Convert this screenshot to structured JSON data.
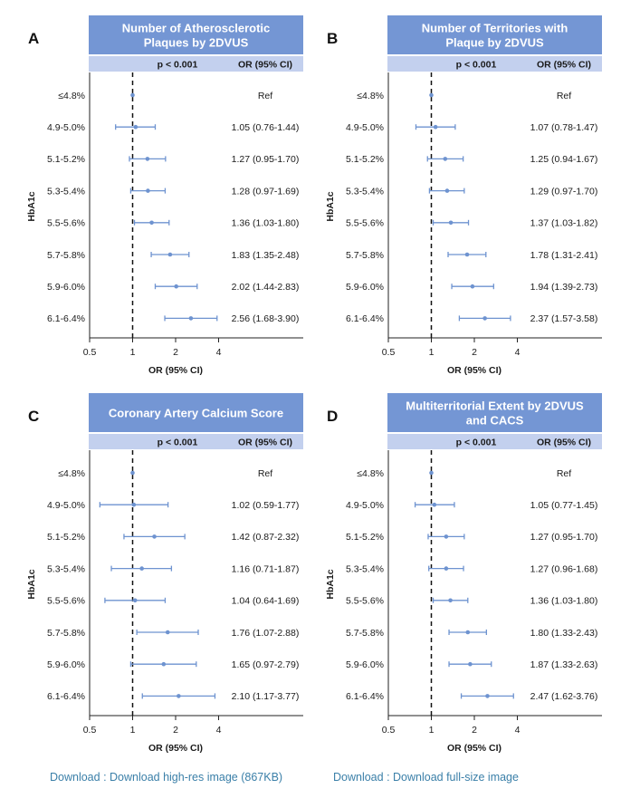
{
  "chart_data": [
    {
      "type": "forest",
      "panel_letter": "A",
      "title": [
        "Number of Atherosclerotic",
        "Plaques by 2DVUS"
      ],
      "p_value": "p < 0.001",
      "or_header": "OR (95% CI)",
      "ylabel": "HbA1c",
      "xlabel": "OR (95% CI)",
      "xscale": "log2",
      "xticks": [
        "0.5",
        "1",
        "2",
        "4"
      ],
      "xlim": [
        0.5,
        5.2
      ],
      "reference_line": 1,
      "rows": [
        {
          "category": "≤4.8%",
          "text": "Ref",
          "or": 1.0,
          "lo": 1.0,
          "hi": 1.0
        },
        {
          "category": "4.9-5.0%",
          "text": "1.05 (0.76-1.44)",
          "or": 1.05,
          "lo": 0.76,
          "hi": 1.44
        },
        {
          "category": "5.1-5.2%",
          "text": "1.27 (0.95-1.70)",
          "or": 1.27,
          "lo": 0.95,
          "hi": 1.7
        },
        {
          "category": "5.3-5.4%",
          "text": "1.28 (0.97-1.69)",
          "or": 1.28,
          "lo": 0.97,
          "hi": 1.69
        },
        {
          "category": "5.5-5.6%",
          "text": "1.36 (1.03-1.80)",
          "or": 1.36,
          "lo": 1.03,
          "hi": 1.8
        },
        {
          "category": "5.7-5.8%",
          "text": "1.83 (1.35-2.48)",
          "or": 1.83,
          "lo": 1.35,
          "hi": 2.48
        },
        {
          "category": "5.9-6.0%",
          "text": "2.02 (1.44-2.83)",
          "or": 2.02,
          "lo": 1.44,
          "hi": 2.83
        },
        {
          "category": "6.1-6.4%",
          "text": "2.56 (1.68-3.90)",
          "or": 2.56,
          "lo": 1.68,
          "hi": 3.9
        }
      ]
    },
    {
      "type": "forest",
      "panel_letter": "B",
      "title": [
        "Number of Territories with",
        "Plaque by 2DVUS"
      ],
      "p_value": "p < 0.001",
      "or_header": "OR (95% CI)",
      "ylabel": "HbA1c",
      "xlabel": "OR (95% CI)",
      "xscale": "log2",
      "xticks": [
        "0.5",
        "1",
        "2",
        "4"
      ],
      "xlim": [
        0.5,
        5.2
      ],
      "reference_line": 1,
      "rows": [
        {
          "category": "≤4.8%",
          "text": "Ref",
          "or": 1.0,
          "lo": 1.0,
          "hi": 1.0
        },
        {
          "category": "4.9-5.0%",
          "text": "1.07 (0.78-1.47)",
          "or": 1.07,
          "lo": 0.78,
          "hi": 1.47
        },
        {
          "category": "5.1-5.2%",
          "text": "1.25 (0.94-1.67)",
          "or": 1.25,
          "lo": 0.94,
          "hi": 1.67
        },
        {
          "category": "5.3-5.4%",
          "text": "1.29 (0.97-1.70)",
          "or": 1.29,
          "lo": 0.97,
          "hi": 1.7
        },
        {
          "category": "5.5-5.6%",
          "text": "1.37 (1.03-1.82)",
          "or": 1.37,
          "lo": 1.03,
          "hi": 1.82
        },
        {
          "category": "5.7-5.8%",
          "text": "1.78 (1.31-2.41)",
          "or": 1.78,
          "lo": 1.31,
          "hi": 2.41
        },
        {
          "category": "5.9-6.0%",
          "text": "1.94 (1.39-2.73)",
          "or": 1.94,
          "lo": 1.39,
          "hi": 2.73
        },
        {
          "category": "6.1-6.4%",
          "text": "2.37 (1.57-3.58)",
          "or": 2.37,
          "lo": 1.57,
          "hi": 3.58
        }
      ]
    },
    {
      "type": "forest",
      "panel_letter": "C",
      "title": [
        "Coronary Artery Calcium Score"
      ],
      "p_value": "p < 0.001",
      "or_header": "OR (95% CI)",
      "ylabel": "HbA1c",
      "xlabel": "OR (95% CI)",
      "xscale": "log2",
      "xticks": [
        "0.5",
        "1",
        "2",
        "4"
      ],
      "xlim": [
        0.5,
        5.2
      ],
      "reference_line": 1,
      "rows": [
        {
          "category": "≤4.8%",
          "text": "Ref",
          "or": 1.0,
          "lo": 1.0,
          "hi": 1.0
        },
        {
          "category": "4.9-5.0%",
          "text": "1.02 (0.59-1.77)",
          "or": 1.02,
          "lo": 0.59,
          "hi": 1.77
        },
        {
          "category": "5.1-5.2%",
          "text": "1.42 (0.87-2.32)",
          "or": 1.42,
          "lo": 0.87,
          "hi": 2.32
        },
        {
          "category": "5.3-5.4%",
          "text": "1.16 (0.71-1.87)",
          "or": 1.16,
          "lo": 0.71,
          "hi": 1.87
        },
        {
          "category": "5.5-5.6%",
          "text": "1.04 (0.64-1.69)",
          "or": 1.04,
          "lo": 0.64,
          "hi": 1.69
        },
        {
          "category": "5.7-5.8%",
          "text": "1.76 (1.07-2.88)",
          "or": 1.76,
          "lo": 1.07,
          "hi": 2.88
        },
        {
          "category": "5.9-6.0%",
          "text": "1.65 (0.97-2.79)",
          "or": 1.65,
          "lo": 0.97,
          "hi": 2.79
        },
        {
          "category": "6.1-6.4%",
          "text": "2.10 (1.17-3.77)",
          "or": 2.1,
          "lo": 1.17,
          "hi": 3.77
        }
      ]
    },
    {
      "type": "forest",
      "panel_letter": "D",
      "title": [
        "Multiterritorial Extent by 2DVUS",
        "and CACS"
      ],
      "p_value": "p < 0.001",
      "or_header": "OR (95% CI)",
      "ylabel": "HbA1c",
      "xlabel": "OR (95% CI)",
      "xscale": "log2",
      "xticks": [
        "0.5",
        "1",
        "2",
        "4"
      ],
      "xlim": [
        0.5,
        5.2
      ],
      "reference_line": 1,
      "rows": [
        {
          "category": "≤4.8%",
          "text": "Ref",
          "or": 1.0,
          "lo": 1.0,
          "hi": 1.0
        },
        {
          "category": "4.9-5.0%",
          "text": "1.05 (0.77-1.45)",
          "or": 1.05,
          "lo": 0.77,
          "hi": 1.45
        },
        {
          "category": "5.1-5.2%",
          "text": "1.27 (0.95-1.70)",
          "or": 1.27,
          "lo": 0.95,
          "hi": 1.7
        },
        {
          "category": "5.3-5.4%",
          "text": "1.27 (0.96-1.68)",
          "or": 1.27,
          "lo": 0.96,
          "hi": 1.68
        },
        {
          "category": "5.5-5.6%",
          "text": "1.36 (1.03-1.80)",
          "or": 1.36,
          "lo": 1.03,
          "hi": 1.8
        },
        {
          "category": "5.7-5.8%",
          "text": "1.80 (1.33-2.43)",
          "or": 1.8,
          "lo": 1.33,
          "hi": 2.43
        },
        {
          "category": "5.9-6.0%",
          "text": "1.87 (1.33-2.63)",
          "or": 1.87,
          "lo": 1.33,
          "hi": 2.63
        },
        {
          "category": "6.1-6.4%",
          "text": "2.47 (1.62-3.76)",
          "or": 2.47,
          "lo": 1.62,
          "hi": 3.76
        }
      ]
    }
  ],
  "colors": {
    "title_bar": "#7496d4",
    "header_bar": "#c3d0ee",
    "point": "#6e93d0",
    "axis": "#222222"
  },
  "footer": {
    "left_link": "Download : Download high-res image (867KB)",
    "right_link": "Download : Download full-size image"
  }
}
